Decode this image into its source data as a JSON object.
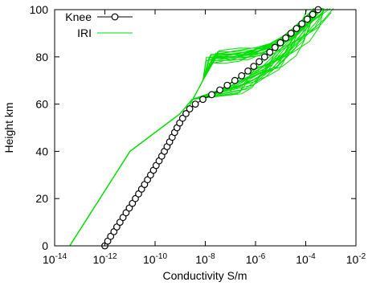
{
  "chart_data": {
    "type": "line",
    "title": "",
    "xlabel": "Conductivity S/m",
    "ylabel": "Height km",
    "x_scale": "log",
    "xlim": [
      1e-14,
      0.01
    ],
    "ylim": [
      0,
      100
    ],
    "x_ticks": [
      {
        "value": 1e-14,
        "base": "10",
        "exp": "-14"
      },
      {
        "value": 1e-12,
        "base": "10",
        "exp": "-12"
      },
      {
        "value": 1e-10,
        "base": "10",
        "exp": "-10"
      },
      {
        "value": 1e-08,
        "base": "10",
        "exp": "-8"
      },
      {
        "value": 1e-06,
        "base": "10",
        "exp": "-6"
      },
      {
        "value": 0.0001,
        "base": "10",
        "exp": "-4"
      },
      {
        "value": 0.01,
        "base": "10",
        "exp": "-2"
      }
    ],
    "y_ticks": [
      0,
      20,
      40,
      60,
      80,
      100
    ],
    "grid": false,
    "legend_position": "top-left",
    "series": [
      {
        "name": "Knee",
        "color": "#000000",
        "marker": "open-circle",
        "points": [
          [
            1e-12,
            0
          ],
          [
            1.3e-12,
            2
          ],
          [
            1.7e-12,
            4
          ],
          [
            2.3e-12,
            6
          ],
          [
            3e-12,
            8
          ],
          [
            4e-12,
            10
          ],
          [
            5.3e-12,
            12
          ],
          [
            7e-12,
            14
          ],
          [
            9.4e-12,
            16
          ],
          [
            1.25e-11,
            18
          ],
          [
            1.65e-11,
            20
          ],
          [
            2.2e-11,
            22
          ],
          [
            2.9e-11,
            24
          ],
          [
            3.8e-11,
            26
          ],
          [
            5e-11,
            28
          ],
          [
            6.6e-11,
            30
          ],
          [
            8.6e-11,
            32
          ],
          [
            1.1e-10,
            34
          ],
          [
            1.45e-10,
            36
          ],
          [
            1.85e-10,
            38
          ],
          [
            2.35e-10,
            40
          ],
          [
            3e-10,
            42
          ],
          [
            3.8e-10,
            44
          ],
          [
            4.8e-10,
            46
          ],
          [
            6e-10,
            48
          ],
          [
            7.5e-10,
            50
          ],
          [
            9.5e-10,
            52
          ],
          [
            1.25e-09,
            54
          ],
          [
            1.7e-09,
            56
          ],
          [
            2.4e-09,
            58
          ],
          [
            4e-09,
            60
          ],
          [
            8e-09,
            62
          ],
          [
            1.8e-08,
            64
          ],
          [
            3.8e-08,
            66
          ],
          [
            7.5e-08,
            68
          ],
          [
            1.5e-07,
            70
          ],
          [
            2.8e-07,
            72
          ],
          [
            5e-07,
            74
          ],
          [
            8.5e-07,
            76
          ],
          [
            1.4e-06,
            78
          ],
          [
            2.3e-06,
            80
          ],
          [
            3.7e-06,
            82
          ],
          [
            6e-06,
            84
          ],
          [
            9.8e-06,
            86
          ],
          [
            1.6e-05,
            88
          ],
          [
            2.6e-05,
            90
          ],
          [
            4.3e-05,
            92
          ],
          [
            7e-05,
            94
          ],
          [
            0.000115,
            96
          ],
          [
            0.00019,
            98
          ],
          [
            0.00031,
            100
          ]
        ]
      },
      {
        "name": "IRI",
        "color": "#00dd00",
        "bundle": {
          "base": [
            [
              4e-14,
              0
            ],
            [
              1e-11,
              40
            ],
            [
              1e-09,
              56
            ],
            [
              3e-09,
              62
            ],
            [
              1.2e-07,
              66
            ],
            [
              3e-07,
              68
            ],
            [
              1e-06,
              72
            ],
            [
              4e-06,
              76
            ],
            [
              1.5e-05,
              82
            ],
            [
              5e-05,
              88
            ],
            [
              0.00015,
              94
            ],
            [
              0.0004,
              100
            ]
          ],
          "upper_branch": [
            [
              2e-08,
              80
            ],
            [
              1e-07,
              80.5
            ],
            [
              5e-07,
              81
            ],
            [
              2e-06,
              83
            ],
            [
              8e-06,
              86
            ],
            [
              3e-05,
              90
            ],
            [
              8e-05,
              94
            ],
            [
              0.0002,
              98
            ],
            [
              0.0003,
              100
            ]
          ]
        }
      }
    ]
  }
}
